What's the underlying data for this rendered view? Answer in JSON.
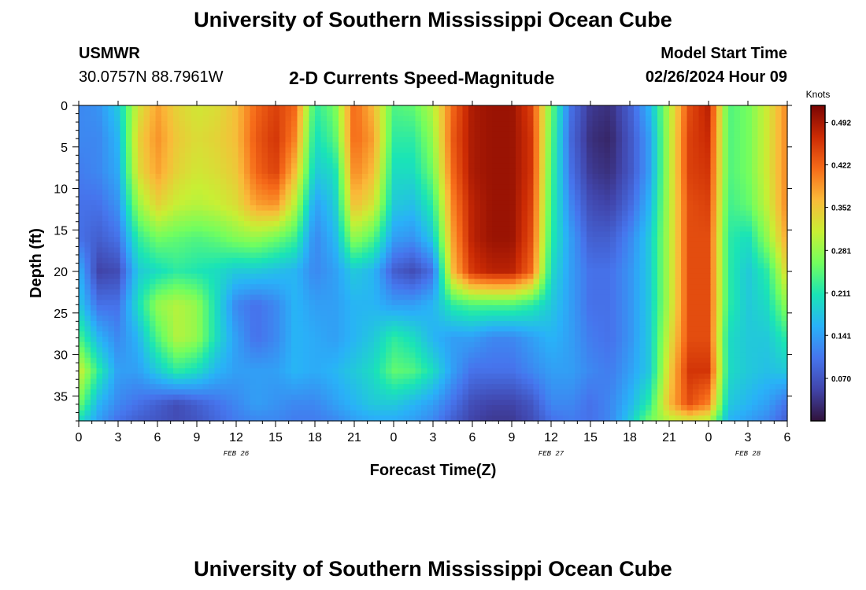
{
  "header": {
    "title": "University of Southern Mississippi Ocean Cube",
    "station": "USMWR",
    "coords": "30.0757N  88.7961W",
    "subtitle": "2-D Currents Speed-Magnitude",
    "model_label": "Model Start Time",
    "model_time": "02/26/2024 Hour 09"
  },
  "footer": {
    "title": "University of Southern Mississippi Ocean Cube"
  },
  "chart_data": {
    "type": "heatmap",
    "title": "2-D Currents Speed-Magnitude",
    "xlabel": "Forecast Time(Z)",
    "ylabel": "Depth (ft)",
    "x_ticks": [
      "0",
      "3",
      "6",
      "9",
      "12",
      "15",
      "18",
      "21",
      "0",
      "3",
      "6",
      "9",
      "12",
      "15",
      "18",
      "21",
      "0",
      "3",
      "6"
    ],
    "x_range_hours": [
      0,
      54
    ],
    "date_labels": [
      {
        "label": "FEB 26",
        "hour": 12
      },
      {
        "label": "FEB 27",
        "hour": 36
      },
      {
        "label": "FEB 28",
        "hour": 51
      }
    ],
    "y_ticks": [
      "0",
      "5",
      "10",
      "15",
      "20",
      "25",
      "30",
      "35"
    ],
    "y_range_ft": [
      0,
      38
    ],
    "y_reversed": true,
    "colorbar": {
      "label": "Knots",
      "min": 0.0,
      "max": 0.52,
      "ticks": [
        "0.492",
        "0.422",
        "0.352",
        "0.281",
        "0.211",
        "0.141",
        "0.070"
      ]
    },
    "time_hours": [
      0,
      1.5,
      3,
      4.5,
      6,
      7.5,
      9,
      10.5,
      12,
      13.5,
      15,
      16.5,
      18,
      19.5,
      21,
      22.5,
      24,
      25.5,
      27,
      28.5,
      30,
      31.5,
      33,
      34.5,
      36,
      37.5,
      39,
      40.5,
      42,
      43.5,
      45,
      46.5,
      48,
      49.5,
      51,
      52.5,
      54
    ],
    "depth_ft": [
      0,
      4,
      8,
      12,
      16,
      20,
      24,
      28,
      32,
      36,
      38
    ],
    "speed_knots": [
      [
        0.12,
        0.13,
        0.18,
        0.32,
        0.38,
        0.34,
        0.32,
        0.33,
        0.36,
        0.42,
        0.45,
        0.42,
        0.22,
        0.26,
        0.42,
        0.36,
        0.24,
        0.25,
        0.3,
        0.42,
        0.49,
        0.5,
        0.5,
        0.45,
        0.26,
        0.1,
        0.04,
        0.03,
        0.08,
        0.16,
        0.3,
        0.44,
        0.48,
        0.24,
        0.26,
        0.32,
        0.4
      ],
      [
        0.12,
        0.12,
        0.16,
        0.34,
        0.39,
        0.35,
        0.33,
        0.34,
        0.36,
        0.43,
        0.46,
        0.4,
        0.2,
        0.24,
        0.42,
        0.38,
        0.22,
        0.22,
        0.28,
        0.43,
        0.49,
        0.5,
        0.5,
        0.46,
        0.25,
        0.09,
        0.03,
        0.02,
        0.07,
        0.14,
        0.3,
        0.45,
        0.47,
        0.24,
        0.26,
        0.32,
        0.4
      ],
      [
        0.11,
        0.12,
        0.15,
        0.33,
        0.38,
        0.34,
        0.32,
        0.33,
        0.35,
        0.42,
        0.45,
        0.36,
        0.18,
        0.2,
        0.4,
        0.36,
        0.2,
        0.2,
        0.26,
        0.42,
        0.49,
        0.5,
        0.5,
        0.46,
        0.24,
        0.1,
        0.04,
        0.03,
        0.07,
        0.14,
        0.3,
        0.45,
        0.46,
        0.24,
        0.26,
        0.32,
        0.4
      ],
      [
        0.1,
        0.1,
        0.13,
        0.28,
        0.34,
        0.31,
        0.3,
        0.31,
        0.33,
        0.38,
        0.39,
        0.3,
        0.14,
        0.18,
        0.36,
        0.32,
        0.18,
        0.17,
        0.22,
        0.4,
        0.48,
        0.5,
        0.5,
        0.45,
        0.23,
        0.12,
        0.06,
        0.05,
        0.09,
        0.16,
        0.3,
        0.44,
        0.45,
        0.23,
        0.25,
        0.31,
        0.4
      ],
      [
        0.1,
        0.08,
        0.1,
        0.22,
        0.26,
        0.25,
        0.24,
        0.25,
        0.27,
        0.28,
        0.26,
        0.23,
        0.12,
        0.16,
        0.28,
        0.24,
        0.14,
        0.13,
        0.18,
        0.38,
        0.48,
        0.5,
        0.5,
        0.44,
        0.22,
        0.14,
        0.08,
        0.08,
        0.12,
        0.18,
        0.3,
        0.44,
        0.44,
        0.22,
        0.2,
        0.28,
        0.38
      ],
      [
        0.16,
        0.05,
        0.06,
        0.18,
        0.2,
        0.22,
        0.21,
        0.2,
        0.18,
        0.18,
        0.17,
        0.16,
        0.12,
        0.14,
        0.18,
        0.16,
        0.08,
        0.06,
        0.1,
        0.36,
        0.46,
        0.48,
        0.48,
        0.42,
        0.2,
        0.14,
        0.1,
        0.1,
        0.13,
        0.18,
        0.3,
        0.44,
        0.44,
        0.22,
        0.18,
        0.22,
        0.34
      ],
      [
        0.18,
        0.1,
        0.1,
        0.2,
        0.28,
        0.3,
        0.28,
        0.2,
        0.12,
        0.1,
        0.12,
        0.16,
        0.14,
        0.14,
        0.16,
        0.16,
        0.14,
        0.14,
        0.16,
        0.22,
        0.24,
        0.24,
        0.24,
        0.22,
        0.18,
        0.14,
        0.1,
        0.1,
        0.13,
        0.18,
        0.3,
        0.44,
        0.44,
        0.22,
        0.18,
        0.2,
        0.28
      ],
      [
        0.24,
        0.16,
        0.12,
        0.16,
        0.24,
        0.3,
        0.28,
        0.2,
        0.14,
        0.1,
        0.12,
        0.16,
        0.15,
        0.14,
        0.16,
        0.18,
        0.22,
        0.2,
        0.16,
        0.14,
        0.14,
        0.12,
        0.12,
        0.14,
        0.16,
        0.14,
        0.11,
        0.1,
        0.13,
        0.18,
        0.32,
        0.44,
        0.44,
        0.2,
        0.18,
        0.18,
        0.22
      ],
      [
        0.32,
        0.22,
        0.14,
        0.14,
        0.18,
        0.22,
        0.2,
        0.16,
        0.14,
        0.14,
        0.14,
        0.16,
        0.15,
        0.16,
        0.18,
        0.2,
        0.25,
        0.24,
        0.2,
        0.14,
        0.1,
        0.1,
        0.1,
        0.12,
        0.14,
        0.14,
        0.12,
        0.11,
        0.14,
        0.18,
        0.34,
        0.46,
        0.46,
        0.2,
        0.18,
        0.17,
        0.18
      ],
      [
        0.26,
        0.16,
        0.12,
        0.1,
        0.08,
        0.06,
        0.08,
        0.1,
        0.12,
        0.14,
        0.13,
        0.12,
        0.12,
        0.14,
        0.16,
        0.18,
        0.18,
        0.16,
        0.14,
        0.1,
        0.06,
        0.05,
        0.05,
        0.07,
        0.12,
        0.12,
        0.1,
        0.12,
        0.16,
        0.22,
        0.36,
        0.44,
        0.4,
        0.18,
        0.16,
        0.14,
        0.1
      ],
      [
        0.2,
        0.14,
        0.1,
        0.08,
        0.07,
        0.06,
        0.07,
        0.09,
        0.11,
        0.12,
        0.12,
        0.11,
        0.11,
        0.12,
        0.14,
        0.15,
        0.15,
        0.14,
        0.12,
        0.08,
        0.05,
        0.04,
        0.04,
        0.06,
        0.1,
        0.11,
        0.1,
        0.12,
        0.18,
        0.26,
        0.3,
        0.32,
        0.3,
        0.16,
        0.14,
        0.12,
        0.08
      ]
    ]
  }
}
